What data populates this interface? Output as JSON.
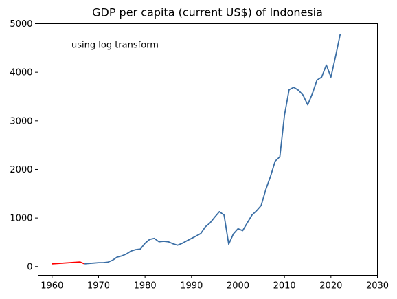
{
  "chart_data": {
    "type": "line",
    "title": "GDP per capita (current US$) of Indonesia",
    "xlabel": "",
    "ylabel": "",
    "annotation": "using log transform",
    "xlim": [
      1957,
      2030
    ],
    "ylim": [
      -180,
      5000
    ],
    "xticks": [
      1960,
      1970,
      1980,
      1990,
      2000,
      2010,
      2020,
      2030
    ],
    "yticks": [
      0,
      1000,
      2000,
      3000,
      4000,
      5000
    ],
    "grid": false,
    "legend": "none",
    "series": [
      {
        "color": "#ff0000",
        "x": [
          1960,
          1966,
          1967
        ],
        "y": [
          55,
          95,
          55
        ]
      },
      {
        "color": "#3a6ea5",
        "x": [
          1967,
          1968,
          1969,
          1970,
          1971,
          1972,
          1973,
          1974,
          1975,
          1976,
          1977,
          1978,
          1979,
          1980,
          1981,
          1982,
          1983,
          1984,
          1985,
          1986,
          1987,
          1988,
          1989,
          1990,
          1991,
          1992,
          1993,
          1994,
          1995,
          1996,
          1997,
          1998,
          1999,
          2000,
          2001,
          2002,
          2003,
          2004,
          2005,
          2006,
          2007,
          2008,
          2009,
          2010,
          2011,
          2012,
          2013,
          2014,
          2015,
          2016,
          2017,
          2018,
          2019,
          2020,
          2021,
          2022
        ],
        "y": [
          55,
          65,
          72,
          80,
          80,
          90,
          130,
          195,
          220,
          260,
          320,
          350,
          360,
          480,
          560,
          580,
          510,
          520,
          510,
          470,
          440,
          480,
          530,
          580,
          630,
          680,
          820,
          900,
          1020,
          1130,
          1060,
          460,
          670,
          780,
          740,
          900,
          1060,
          1150,
          1260,
          1590,
          1860,
          2170,
          2260,
          3120,
          3640,
          3690,
          3630,
          3530,
          3330,
          3560,
          3840,
          3900,
          4150,
          3900,
          4330,
          4790
        ]
      }
    ]
  }
}
